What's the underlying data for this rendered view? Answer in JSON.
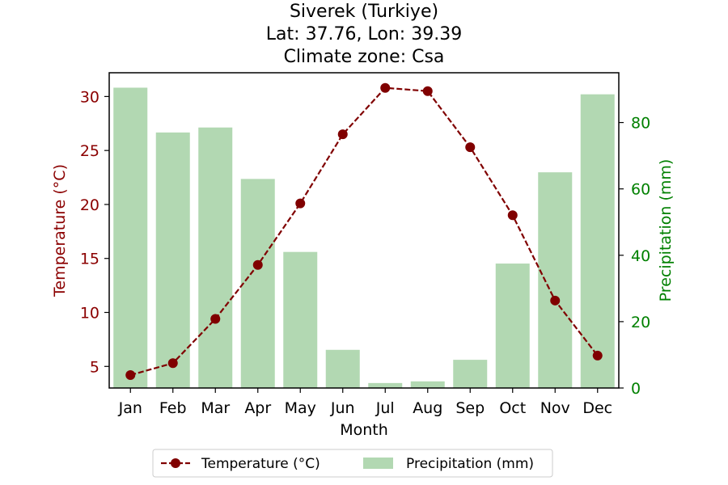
{
  "chart_data": {
    "type": "bar+line",
    "title_lines": [
      "Siverek (Turkiye)",
      "Lat: 37.76, Lon: 39.39",
      "Climate zone: Csa"
    ],
    "categories": [
      "Jan",
      "Feb",
      "Mar",
      "Apr",
      "May",
      "Jun",
      "Jul",
      "Aug",
      "Sep",
      "Oct",
      "Nov",
      "Dec"
    ],
    "xlabel": "Month",
    "ylabel_left": "Temperature (°C)",
    "ylabel_right": "Precipitation (mm)",
    "ylim_left": [
      3.0,
      32.2
    ],
    "ylim_right": [
      0,
      95
    ],
    "yticks_left": [
      5,
      10,
      15,
      20,
      25,
      30
    ],
    "yticks_right": [
      0,
      20,
      40,
      60,
      80
    ],
    "grid": false,
    "legend_placement": "bottom-center",
    "series": [
      {
        "name": "Temperature (°C)",
        "kind": "line",
        "axis": "left",
        "color": "#800000",
        "values": [
          4.2,
          5.3,
          9.4,
          14.4,
          20.1,
          26.5,
          30.8,
          30.5,
          25.3,
          19.0,
          11.1,
          6.0
        ]
      },
      {
        "name": "Precipitation (mm)",
        "kind": "bar",
        "axis": "right",
        "color": "#b2d8b2",
        "values": [
          90.5,
          77.0,
          78.5,
          63.0,
          41.0,
          11.5,
          1.5,
          2.0,
          8.5,
          37.5,
          65.0,
          88.5
        ]
      }
    ],
    "colors": {
      "left_axis": "#8b0000",
      "right_axis": "#008000"
    }
  }
}
